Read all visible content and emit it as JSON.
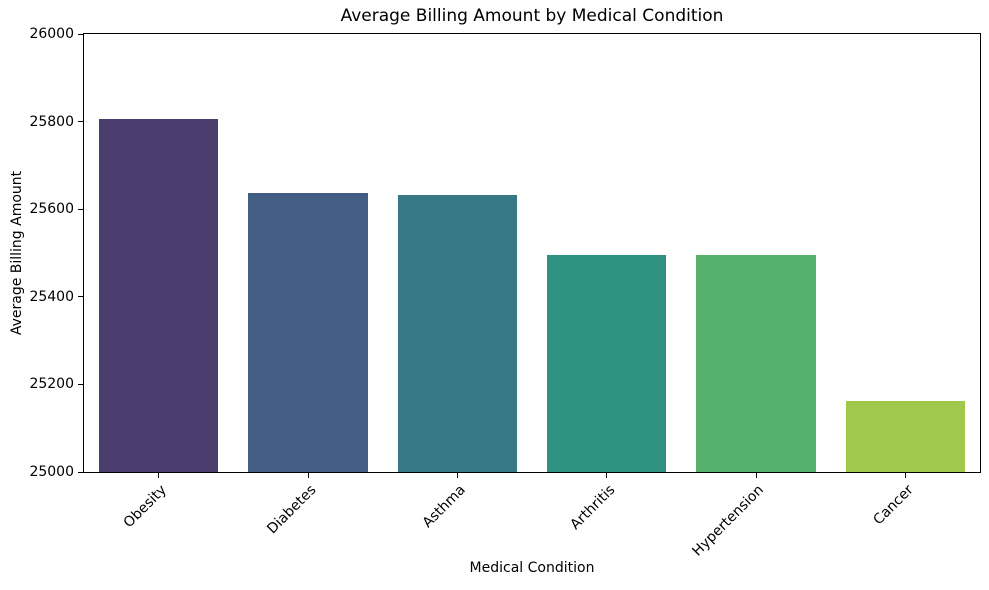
{
  "chart_data": {
    "type": "bar",
    "title": "Average Billing Amount by Medical Condition",
    "xlabel": "Medical Condition",
    "ylabel": "Average Billing Amount",
    "categories": [
      "Obesity",
      "Diabetes",
      "Asthma",
      "Arthritis",
      "Hypertension",
      "Cancer"
    ],
    "values": [
      25807,
      25638,
      25633,
      25496,
      25495,
      25161
    ],
    "ylim": [
      25000,
      26000
    ],
    "ytick_step": 200,
    "ytick_labels": [
      "25000",
      "25200",
      "25400",
      "25600",
      "25800",
      "26000"
    ],
    "bar_colors": [
      "#4b3d6e",
      "#425e85",
      "#377886",
      "#2f9180",
      "#55b16d",
      "#a2c74d"
    ],
    "palette_name": "viridis",
    "grid": false,
    "legend_position": "none",
    "x_tick_rotation_deg": 45,
    "axis_color": "#000000"
  }
}
